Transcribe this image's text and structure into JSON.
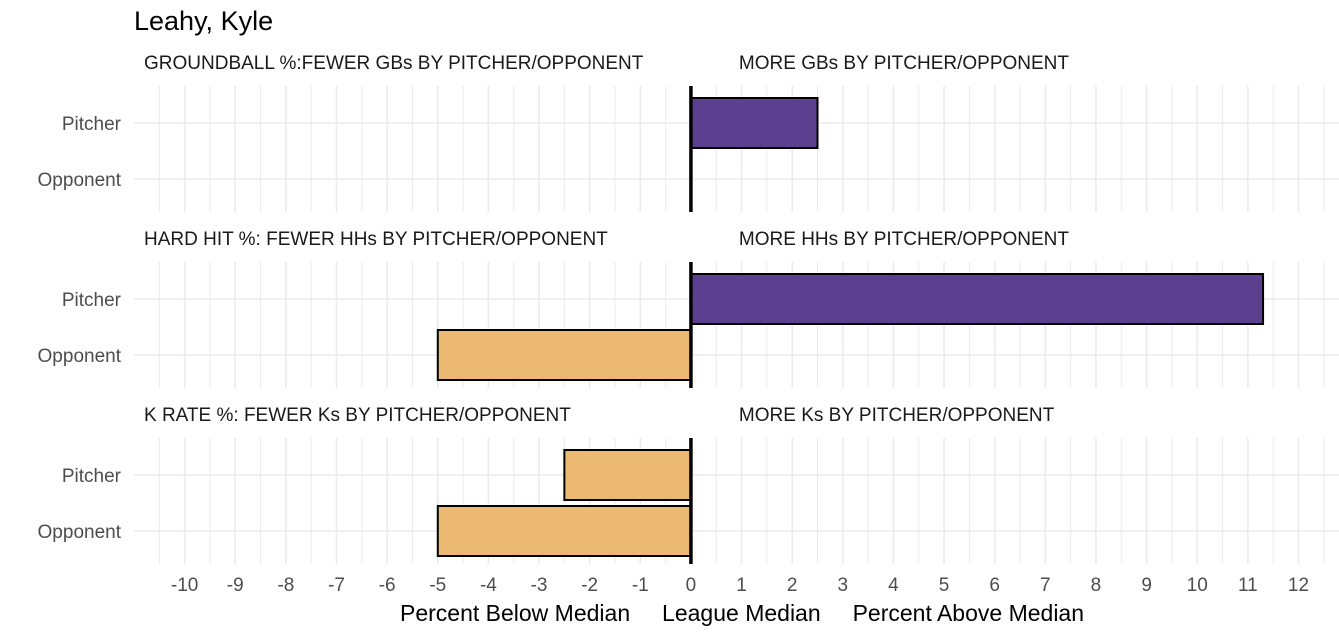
{
  "chart_data": {
    "type": "bar",
    "orientation": "horizontal",
    "title": "Leahy, Kyle",
    "categories": [
      "Pitcher",
      "Opponent"
    ],
    "xlim": [
      -11,
      12.8
    ],
    "x_ticks": [
      -10,
      -9,
      -8,
      -7,
      -6,
      -5,
      -4,
      -3,
      -2,
      -1,
      0,
      1,
      2,
      3,
      4,
      5,
      6,
      7,
      8,
      9,
      10,
      11,
      12
    ],
    "x_tick_labels": [
      "-10",
      "-9",
      "-8",
      "-7",
      "-6",
      "-5",
      "-4",
      "-3",
      "-2",
      "-1",
      "0",
      "1",
      "2",
      "3",
      "4",
      "5",
      "6",
      "7",
      "8",
      "9",
      "10",
      "11",
      "12"
    ],
    "xlabel": "Percent Below Median     League Median     Percent Above Median",
    "grid": true,
    "colors": {
      "above": "#5c3f8f",
      "below": "#ecb972",
      "outline": "#000000",
      "grid": "#ebebeb"
    },
    "panels": [
      {
        "left_label": "GROUNDBALL %:FEWER GBs BY PITCHER/OPPONENT",
        "right_label": "MORE GBs BY PITCHER/OPPONENT",
        "values": {
          "Pitcher": 2.5,
          "Opponent": 0
        }
      },
      {
        "left_label": "HARD HIT %:  FEWER HHs BY PITCHER/OPPONENT",
        "right_label": "MORE HHs BY PITCHER/OPPONENT",
        "values": {
          "Pitcher": 11.3,
          "Opponent": -5
        }
      },
      {
        "left_label": "K RATE %:    FEWER Ks BY PITCHER/OPPONENT",
        "right_label": "MORE Ks BY PITCHER/OPPONENT",
        "values": {
          "Pitcher": -2.5,
          "Opponent": -5
        }
      }
    ]
  }
}
